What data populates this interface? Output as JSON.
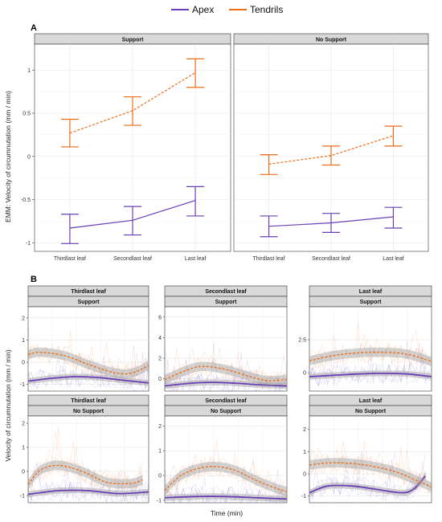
{
  "legend": {
    "items": [
      {
        "name": "Apex",
        "color": "#6a3fb5"
      },
      {
        "name": "Tendrils",
        "color": "#ec6b16"
      }
    ]
  },
  "panel_a": {
    "label": "A",
    "ylabel": "EMM: Velocity of circumnutation  (mm / min)",
    "y_ticks": [
      "1",
      "0.5",
      "0",
      "-0.5",
      "-1"
    ],
    "x_ticks": [
      "Thirdlast leaf",
      "Secondlast leaf",
      "Last leaf"
    ],
    "strips": [
      "Support",
      "No Support"
    ]
  },
  "panel_b": {
    "label": "B",
    "ylabel": "Velocity of circumnutation  (mm / min)",
    "xlabel": "Time   (min)",
    "top_strips": [
      "Thirdlast leaf",
      "Secondlast leaf",
      "Last leaf",
      "Thirdlast leaf",
      "Secondlast leaf",
      "Last leaf"
    ],
    "bottom_strips": [
      "Support",
      "Support",
      "Support",
      "No Support",
      "No Support",
      "No Support"
    ],
    "y_ticks": [
      [
        "2",
        "1",
        "0",
        "-1"
      ],
      [
        "6",
        "4",
        "2",
        "0"
      ],
      [
        "2.5",
        "0"
      ],
      [
        "2",
        "1",
        "0",
        "-1"
      ],
      [
        "2",
        "1",
        "0",
        "-1"
      ],
      [
        "2",
        "1",
        "0",
        "-1"
      ]
    ]
  },
  "chart_data": [
    {
      "type": "line",
      "title": "A",
      "ylabel": "EMM: Velocity of circumnutation  (mm / min)",
      "categories": [
        "Thirdlast leaf",
        "Secondlast leaf",
        "Last leaf"
      ],
      "ylim": [
        -1.1,
        1.3
      ],
      "facets": [
        {
          "strip": "Support",
          "series": [
            {
              "name": "Apex",
              "line": "solid",
              "values": [
                -0.83,
                -0.74,
                -0.51
              ],
              "lower": [
                -1.01,
                -0.91,
                -0.69
              ],
              "upper": [
                -0.67,
                -0.58,
                -0.35
              ]
            },
            {
              "name": "Tendrils",
              "line": "dashed",
              "values": [
                0.27,
                0.53,
                0.97
              ],
              "lower": [
                0.11,
                0.36,
                0.8
              ],
              "upper": [
                0.43,
                0.69,
                1.13
              ]
            }
          ]
        },
        {
          "strip": "No Support",
          "series": [
            {
              "name": "Apex",
              "line": "solid",
              "values": [
                -0.81,
                -0.77,
                -0.7
              ],
              "lower": [
                -0.93,
                -0.88,
                -0.83
              ],
              "upper": [
                -0.69,
                -0.66,
                -0.59
              ]
            },
            {
              "name": "Tendrils",
              "line": "dashed",
              "values": [
                -0.09,
                0.01,
                0.24
              ],
              "lower": [
                -0.21,
                -0.1,
                0.12
              ],
              "upper": [
                0.02,
                0.12,
                0.35
              ]
            }
          ]
        }
      ]
    },
    {
      "type": "line",
      "title": "B",
      "ylabel": "Velocity of circumnutation  (mm / min)",
      "xlabel": "Time   (min)",
      "facets": [
        {
          "leaf": "Thirdlast leaf",
          "support": "Support",
          "ylim": [
            -1.3,
            2.5
          ],
          "series": [
            {
              "name": "Apex",
              "x": [
                0,
                0.2,
                0.4,
                0.6,
                0.8,
                1
              ],
              "values": [
                -0.85,
                -0.72,
                -0.65,
                -0.7,
                -0.82,
                -0.93
              ]
            },
            {
              "name": "Tendrils",
              "x": [
                0,
                0.1,
                0.3,
                0.5,
                0.7,
                0.85,
                1
              ],
              "values": [
                0.35,
                0.45,
                0.3,
                -0.1,
                -0.45,
                -0.5,
                -0.15
              ]
            }
          ]
        },
        {
          "leaf": "Secondlast leaf",
          "support": "Support",
          "ylim": [
            -1.2,
            7
          ],
          "series": [
            {
              "name": "Apex",
              "x": [
                0,
                0.2,
                0.4,
                0.6,
                0.8,
                1
              ],
              "values": [
                -0.7,
                -0.45,
                -0.35,
                -0.45,
                -0.6,
                -0.7
              ]
            },
            {
              "name": "Tendrils",
              "x": [
                0,
                0.15,
                0.3,
                0.5,
                0.7,
                0.85,
                1
              ],
              "values": [
                -0.1,
                0.7,
                1.2,
                0.9,
                0.2,
                -0.2,
                -0.05
              ]
            }
          ]
        },
        {
          "leaf": "Last leaf",
          "support": "Support",
          "ylim": [
            -1.4,
            5
          ],
          "series": [
            {
              "name": "Apex",
              "x": [
                0,
                0.2,
                0.4,
                0.6,
                0.8,
                1
              ],
              "values": [
                -0.3,
                -0.2,
                -0.1,
                -0.05,
                -0.1,
                -0.3
              ]
            },
            {
              "name": "Tendrils",
              "x": [
                0,
                0.2,
                0.4,
                0.6,
                0.8,
                1
              ],
              "values": [
                0.9,
                1.3,
                1.5,
                1.55,
                1.4,
                0.85
              ]
            }
          ]
        },
        {
          "leaf": "Thirdlast leaf",
          "support": "No Support",
          "ylim": [
            -1.3,
            2.3
          ],
          "series": [
            {
              "name": "Apex",
              "x": [
                0,
                0.25,
                0.5,
                0.75,
                1
              ],
              "values": [
                -0.95,
                -0.8,
                -0.8,
                -0.92,
                -0.85
              ]
            },
            {
              "name": "Tendrils",
              "x": [
                0,
                0.1,
                0.25,
                0.45,
                0.65,
                0.85,
                0.95
              ],
              "values": [
                -0.55,
                0.05,
                0.25,
                0.0,
                -0.45,
                -0.5,
                -0.35
              ]
            }
          ]
        },
        {
          "leaf": "Secondlast leaf",
          "support": "No Support",
          "ylim": [
            -1.1,
            2.4
          ],
          "series": [
            {
              "name": "Apex",
              "x": [
                0,
                0.25,
                0.5,
                0.75,
                1
              ],
              "values": [
                -0.9,
                -0.85,
                -0.85,
                -0.9,
                -0.95
              ]
            },
            {
              "name": "Tendrils",
              "x": [
                0,
                0.15,
                0.35,
                0.55,
                0.75,
                0.9,
                1
              ],
              "values": [
                -0.6,
                0.05,
                0.35,
                0.25,
                -0.2,
                -0.5,
                -0.65
              ]
            }
          ]
        },
        {
          "leaf": "Last leaf",
          "support": "No Support",
          "ylim": [
            -1.3,
            2.6
          ],
          "series": [
            {
              "name": "Apex",
              "x": [
                0,
                0.15,
                0.35,
                0.55,
                0.75,
                0.85,
                0.95
              ],
              "values": [
                -0.85,
                -0.55,
                -0.55,
                -0.7,
                -0.85,
                -0.7,
                -0.1
              ]
            },
            {
              "name": "Tendrils",
              "x": [
                0,
                0.2,
                0.45,
                0.7,
                0.9,
                1
              ],
              "values": [
                0.4,
                0.5,
                0.4,
                0.1,
                -0.35,
                -0.6
              ]
            }
          ]
        }
      ]
    }
  ]
}
